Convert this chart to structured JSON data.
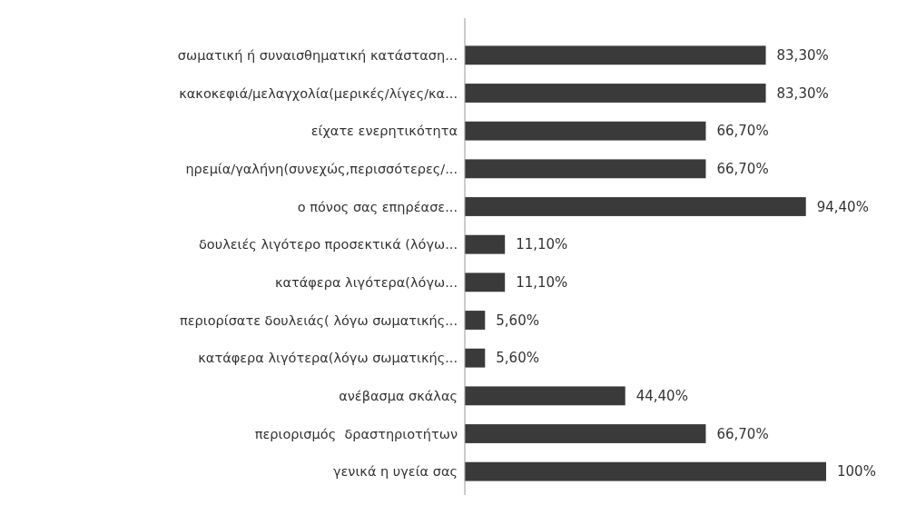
{
  "chart_data": {
    "type": "bar",
    "orientation": "horizontal",
    "categories": [
      "σωματική ή συναισθηματική κατάσταση...",
      "κακοκεφιά/μελαγχολία(μερικές/λίγες/κα...",
      "είχατε ενερητικότητα",
      "ηρεμία/γαλήνη(συνεχώς,περισσότερες/...",
      "ο πόνος σας επηρέασε...",
      "δουλειές λιγότερο προσεκτικά (λόγω...",
      "κατάφερα λιγότερα(λόγω...",
      "περιορίσατε δουλειάς( λόγω σωματικής...",
      "κατάφερα λιγότερα(λόγω σωματικής...",
      "ανέβασμα σκάλας",
      "περιορισμός  δραστηριοτήτων",
      "γενικά η υγεία σας"
    ],
    "values": [
      83.3,
      83.3,
      66.7,
      66.7,
      94.4,
      11.1,
      11.1,
      5.6,
      5.6,
      44.4,
      66.7,
      100
    ],
    "value_labels": [
      "83,30%",
      "83,30%",
      "66,70%",
      "66,70%",
      "94,40%",
      "11,10%",
      "11,10%",
      "5,60%",
      "5,60%",
      "44,40%",
      "66,70%",
      "100%"
    ],
    "color": "#3a3a3a"
  }
}
